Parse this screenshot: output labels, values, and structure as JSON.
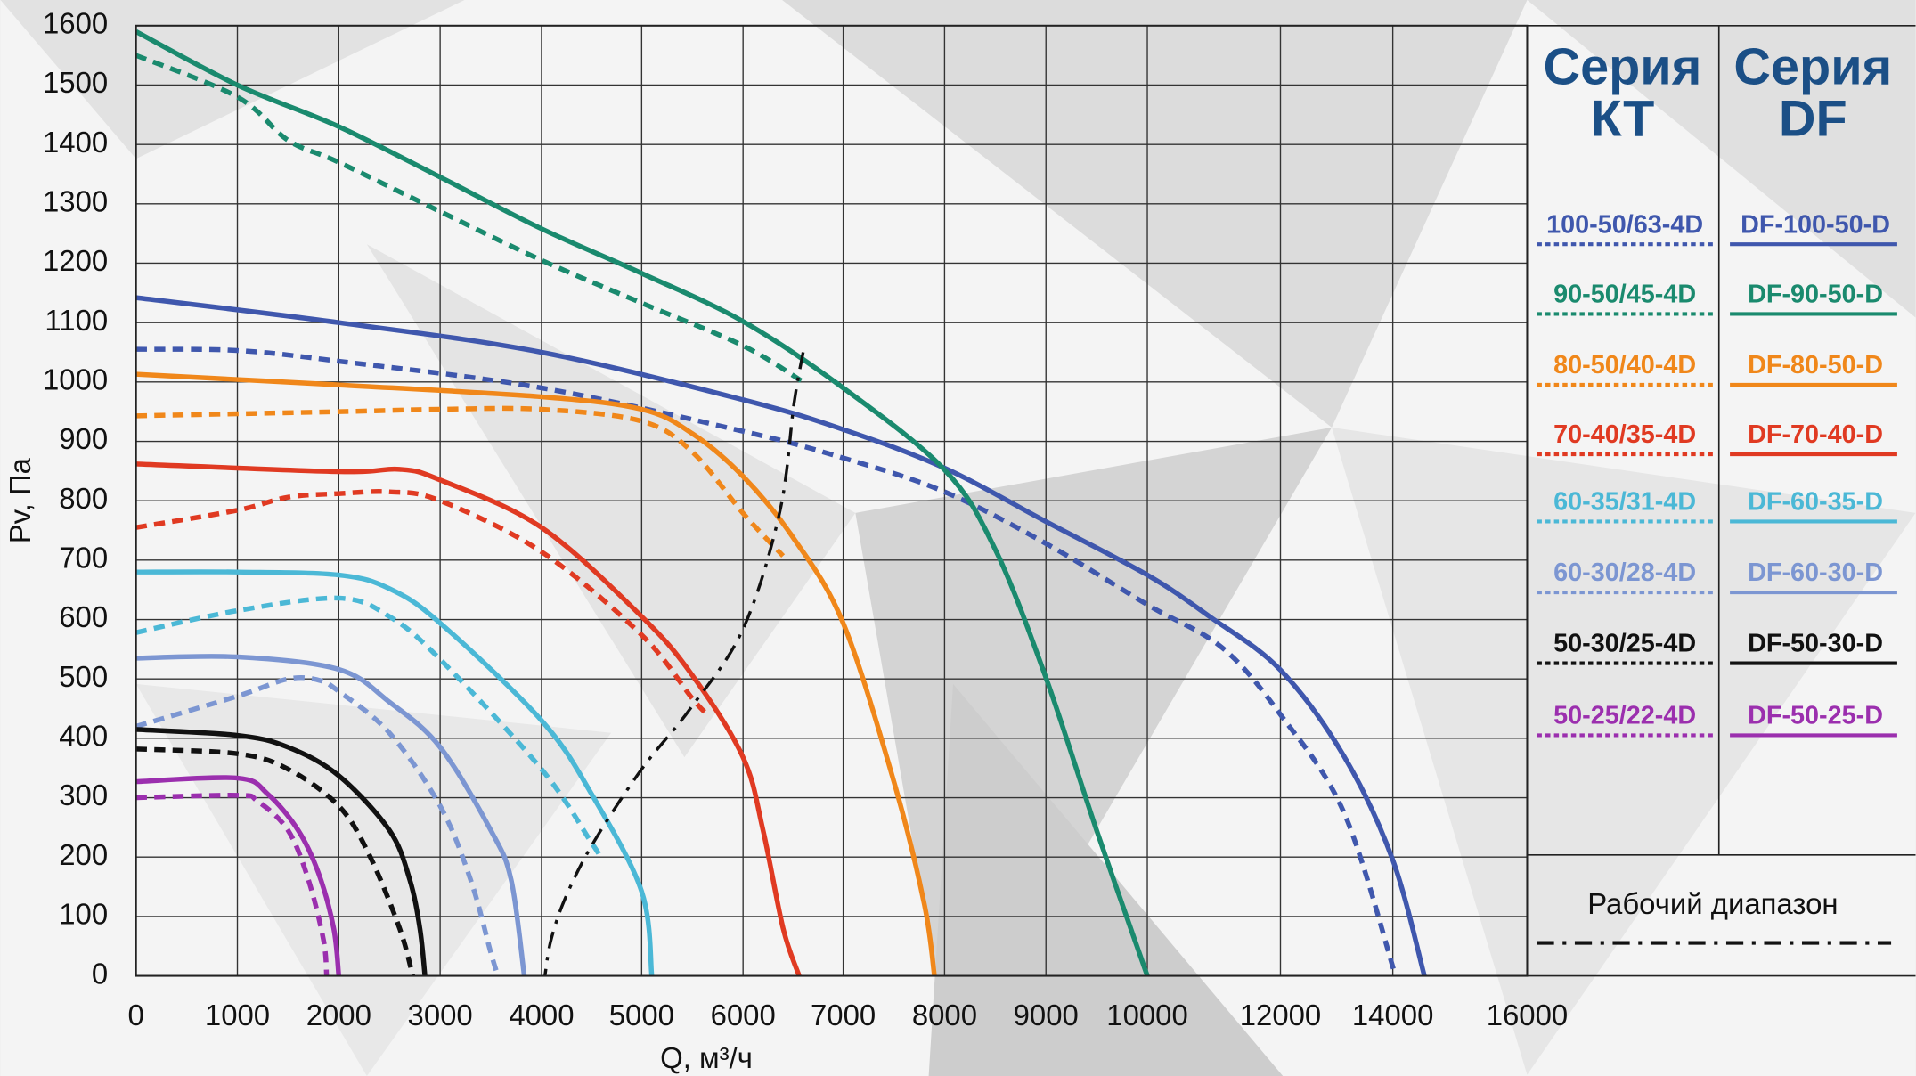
{
  "chart_data": {
    "type": "line",
    "x_label": "Q, м³/ч",
    "y_label": "Pv, Па",
    "xlim": [
      0,
      16000
    ],
    "ylim": [
      0,
      1600
    ],
    "xticks": [
      0,
      1000,
      2000,
      3000,
      4000,
      5000,
      6000,
      7000,
      8000,
      9000,
      10000,
      12000,
      14000,
      16000
    ],
    "yticks": [
      0,
      100,
      200,
      300,
      400,
      500,
      600,
      700,
      800,
      900,
      1000,
      1100,
      1200,
      1300,
      1400,
      1500,
      1600
    ],
    "grid": true,
    "legend_titles": [
      [
        "Серия",
        "КТ"
      ],
      [
        "Серия",
        "DF"
      ]
    ],
    "series": [
      {
        "name": "100-50/63-4D",
        "color": "#3f57ad",
        "dashed": true,
        "x": [
          0,
          1000,
          2000,
          4000,
          6000,
          7000,
          8000,
          9000,
          10000,
          11120,
          12000,
          13130,
          14040
        ],
        "values": [
          1055,
          1053,
          1035,
          990,
          917,
          872,
          815,
          728,
          625,
          553,
          440,
          275,
          0
        ]
      },
      {
        "name": "DF-100-50-D",
        "color": "#3f57ad",
        "dashed": false,
        "x": [
          0,
          2000,
          4000,
          6000,
          7000,
          8000,
          9000,
          10000,
          10936,
          12000,
          13130,
          14000,
          14470
        ],
        "values": [
          1142,
          1100,
          1050,
          970,
          920,
          855,
          765,
          675,
          605,
          515,
          370,
          195,
          0
        ]
      },
      {
        "name": "90-50/45-4D",
        "color": "#1a8a6e",
        "dashed": true,
        "x": [
          0,
          1000,
          1500,
          2000,
          3000,
          4000,
          5000,
          6000,
          6600
        ],
        "values": [
          1550,
          1480,
          1407,
          1370,
          1287,
          1205,
          1133,
          1061,
          1000
        ]
      },
      {
        "name": "DF-90-50-D",
        "color": "#1a8a6e",
        "dashed": false,
        "x": [
          0,
          1000,
          2000,
          3000,
          4000,
          5000,
          6000,
          7000,
          8000,
          8500,
          9000,
          9500,
          10000
        ],
        "values": [
          1590,
          1500,
          1430,
          1345,
          1258,
          1183,
          1102,
          990,
          852,
          718,
          502,
          245,
          0
        ]
      },
      {
        "name": "80-50/40-4D",
        "color": "#f0871a",
        "dashed": true,
        "x": [
          0,
          2000,
          3000,
          4000,
          5000,
          5500,
          6000,
          6400
        ],
        "values": [
          943,
          950,
          954,
          954,
          934,
          882,
          779,
          707
        ]
      },
      {
        "name": "DF-80-50-D",
        "color": "#f0871a",
        "dashed": false,
        "x": [
          0,
          2000,
          4000,
          5000,
          5500,
          6000,
          6500,
          7000,
          7500,
          7800,
          7900
        ],
        "values": [
          1013,
          995,
          975,
          954,
          913,
          841,
          738,
          594,
          327,
          121,
          0
        ]
      },
      {
        "name": "70-40/35-4D",
        "color": "#e03a22",
        "dashed": true,
        "x": [
          0,
          1000,
          1500,
          2000,
          2500,
          3000,
          4000,
          5000,
          5500,
          5650
        ],
        "values": [
          755,
          784,
          806,
          812,
          815,
          800,
          714,
          574,
          467,
          440
        ]
      },
      {
        "name": "DF-70-40-D",
        "color": "#e03a22",
        "dashed": false,
        "x": [
          0,
          2000,
          2600,
          3000,
          4000,
          5000,
          5500,
          6000,
          6200,
          6400,
          6560
        ],
        "values": [
          862,
          849,
          853,
          835,
          755,
          605,
          506,
          368,
          245,
          80,
          0
        ]
      },
      {
        "name": "60-35/31-4D",
        "color": "#4bb8d6",
        "dashed": true,
        "x": [
          0,
          1000,
          2000,
          2500,
          3000,
          4000,
          4500,
          4575
        ],
        "values": [
          578,
          615,
          636,
          605,
          533,
          348,
          224,
          204
        ]
      },
      {
        "name": "DF-60-35-D",
        "color": "#4bb8d6",
        "dashed": false,
        "x": [
          0,
          1000,
          2000,
          2500,
          3000,
          4000,
          4500,
          5000,
          5100
        ],
        "values": [
          680,
          680,
          675,
          652,
          594,
          430,
          306,
          142,
          0
        ]
      },
      {
        "name": "60-30/28-4D",
        "color": "#7c96d2",
        "dashed": true,
        "x": [
          0,
          1000,
          1500,
          1800,
          2000,
          2500,
          3000,
          3300,
          3500,
          3570
        ],
        "values": [
          420,
          471,
          500,
          498,
          479,
          409,
          286,
          162,
          39,
          0
        ]
      },
      {
        "name": "DF-60-30-D",
        "color": "#7c96d2",
        "dashed": false,
        "x": [
          0,
          1000,
          2000,
          2500,
          3000,
          3500,
          3700,
          3830
        ],
        "values": [
          535,
          537,
          516,
          461,
          385,
          245,
          162,
          0
        ]
      },
      {
        "name": "50-30/25-4D",
        "color": "#111111",
        "dashed": true,
        "x": [
          0,
          1000,
          1500,
          2000,
          2300,
          2600,
          2730
        ],
        "values": [
          382,
          374,
          348,
          286,
          204,
          80,
          0
        ]
      },
      {
        "name": "DF-50-30-D",
        "color": "#111111",
        "dashed": false,
        "x": [
          0,
          1000,
          1500,
          2000,
          2500,
          2700,
          2800,
          2850
        ],
        "values": [
          415,
          405,
          385,
          337,
          245,
          162,
          80,
          0
        ]
      },
      {
        "name": "50-25/22-4D",
        "color": "#9b2fae",
        "dashed": true,
        "x": [
          0,
          1000,
          1200,
          1500,
          1700,
          1850,
          1880
        ],
        "values": [
          300,
          304,
          294,
          245,
          162,
          60,
          0
        ]
      },
      {
        "name": "DF-50-25-D",
        "color": "#9b2fae",
        "dashed": false,
        "x": [
          0,
          1000,
          1300,
          1600,
          1800,
          1950,
          2000
        ],
        "values": [
          327,
          333,
          306,
          245,
          173,
          80,
          0
        ]
      },
      {
        "name": "Рабочий диапазон",
        "color": "#111111",
        "style": "dashdot",
        "x": [
          6600,
          6510,
          6365,
          6000,
          5480,
          5000,
          4517,
          4240,
          4094,
          4034
        ],
        "values": [
          1050,
          965,
          780,
          584,
          450,
          348,
          224,
          132,
          60,
          0
        ]
      }
    ]
  }
}
